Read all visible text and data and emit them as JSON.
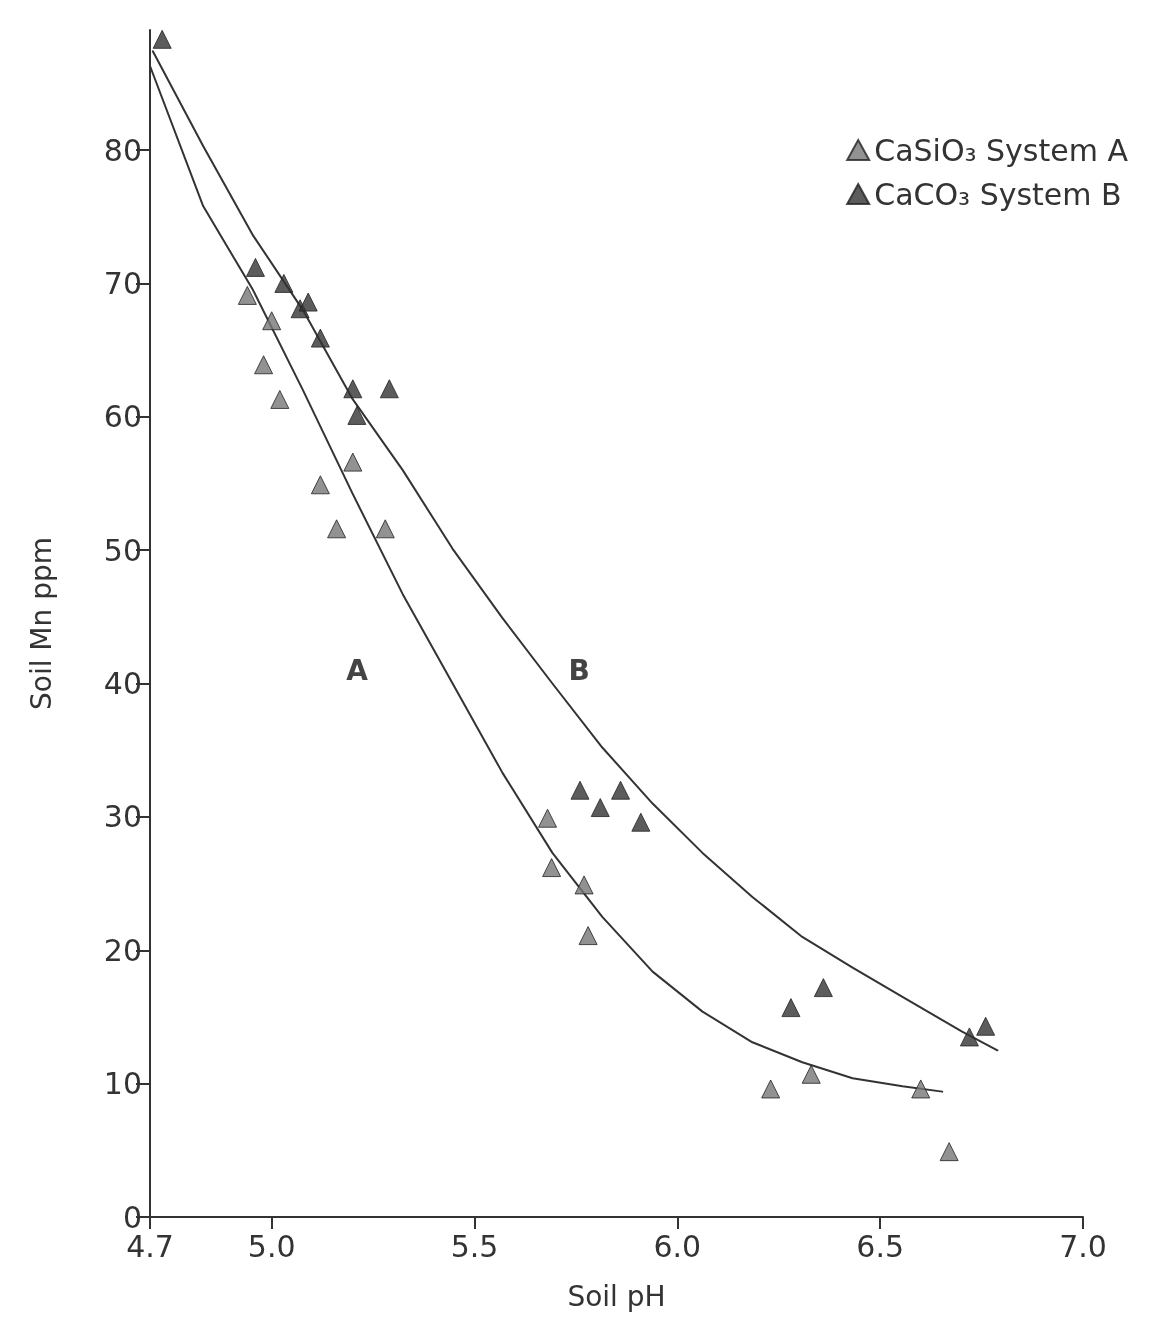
{
  "chart_data": {
    "type": "scatter",
    "xlabel": "Soil pH",
    "ylabel": "Soil Mn ppm",
    "xlim": [
      4.7,
      7.0
    ],
    "ylim": [
      0,
      89
    ],
    "xticks": [
      4.7,
      {
        "value": 5.0,
        "label": "5.0"
      },
      5.5,
      {
        "value": 6.0,
        "label": "6.0"
      },
      6.5,
      {
        "value": 7.0,
        "label": "7.0"
      }
    ],
    "yticks": [
      0,
      10,
      20,
      30,
      40,
      50,
      60,
      70,
      80
    ],
    "grid": false,
    "legend": "top right",
    "marker": "triangle",
    "annotations": [
      "A",
      "B"
    ],
    "series": [
      {
        "name": "CaSiO₃ System A",
        "color": "#777777",
        "x": [
          4.94,
          5.0,
          4.98,
          5.02,
          5.12,
          5.16,
          5.2,
          5.28,
          5.68,
          5.69,
          5.77,
          5.78,
          6.23,
          6.33,
          6.6,
          6.67
        ],
        "values": [
          69.1,
          67.2,
          63.9,
          61.3,
          54.9,
          51.6,
          56.6,
          51.6,
          29.9,
          26.2,
          24.9,
          21.1,
          9.6,
          10.7,
          9.6,
          4.9
        ]
      },
      {
        "name": "CaCO₃ System B",
        "color": "#333333",
        "x": [
          4.73,
          4.96,
          5.03,
          5.07,
          5.09,
          5.12,
          5.2,
          5.29,
          5.21,
          5.76,
          5.81,
          5.86,
          5.91,
          6.28,
          6.36,
          6.72,
          6.76
        ],
        "values": [
          88.3,
          71.2,
          70.0,
          68.1,
          68.6,
          65.9,
          62.1,
          62.1,
          60.1,
          32.0,
          30.7,
          32.0,
          29.6,
          15.7,
          17.2,
          13.5,
          14.3
        ]
      },
      {
        "type": "line",
        "marker": "none",
        "color": "#333333",
        "x": [
          4.707,
          4.831,
          4.954,
          5.077,
          5.2,
          5.323,
          5.446,
          5.569,
          5.692,
          5.815,
          5.939,
          6.062,
          6.185,
          6.308,
          6.432,
          6.555,
          6.702,
          6.789
        ],
        "values": [
          87.4,
          80.3,
          73.6,
          68.0,
          61.3,
          56.0,
          50.1,
          44.9,
          40.0,
          35.2,
          31.0,
          27.3,
          24.0,
          21.0,
          18.7,
          16.5,
          13.9,
          12.5
        ]
      },
      {
        "type": "line",
        "marker": "none",
        "color": "#333333",
        "x": [
          4.7,
          4.831,
          4.954,
          5.077,
          5.2,
          5.323,
          5.446,
          5.569,
          5.692,
          5.815,
          5.939,
          6.062,
          6.185,
          6.308,
          6.432,
          6.555,
          6.653
        ],
        "values": [
          86.3,
          75.8,
          69.5,
          62.0,
          54.2,
          46.7,
          40.0,
          33.3,
          27.3,
          22.5,
          18.4,
          15.4,
          13.1,
          11.6,
          10.4,
          9.8,
          9.4
        ]
      }
    ]
  }
}
